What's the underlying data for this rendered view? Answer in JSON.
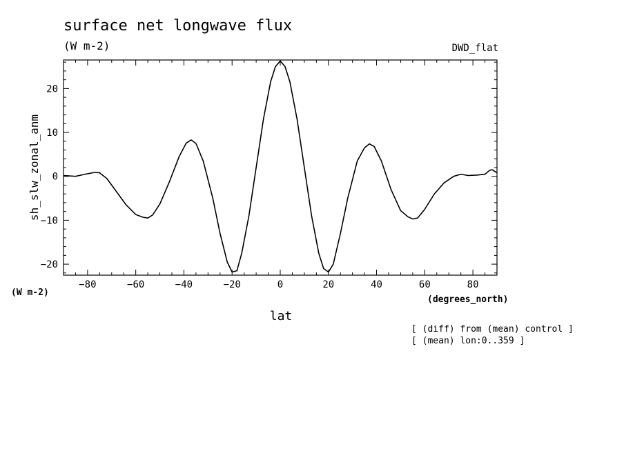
{
  "chart_data": {
    "type": "line",
    "title": "surface net longwave flux",
    "subtitle": "(W m-2)",
    "experiment": "DWD_flat",
    "ylabel": "sh_slw_zonal_anm",
    "yunits": "(W m-2)",
    "xlabel": "lat",
    "xunits": "(degrees_north)",
    "xlim": [
      -90,
      90
    ],
    "ylim": [
      -22.5,
      26.5
    ],
    "xticks": [
      -80,
      -60,
      -40,
      -20,
      0,
      20,
      40,
      60,
      80
    ],
    "yticks": [
      -20,
      -10,
      0,
      10,
      20
    ],
    "grid": false,
    "notes": [
      "[ (diff) from (mean) control ]",
      "[ (mean) lon:0..359 ]"
    ],
    "series": [
      {
        "x": [
          -90,
          -85,
          -81,
          -77,
          -75,
          -72,
          -68,
          -64,
          -60,
          -57,
          -55,
          -53,
          -50,
          -46,
          -42,
          -39,
          -37,
          -35,
          -32,
          -28,
          -25,
          -22,
          -20,
          -18,
          -16,
          -13,
          -10,
          -7,
          -4,
          -2,
          0,
          2,
          4,
          7,
          10,
          13,
          16,
          18,
          20,
          22,
          25,
          28,
          32,
          35,
          37,
          39,
          42,
          46,
          50,
          53,
          55,
          57,
          60,
          64,
          68,
          72,
          75,
          78,
          82,
          85,
          87,
          88,
          90
        ],
        "y": [
          0.2,
          0.0,
          0.5,
          0.9,
          0.8,
          -0.5,
          -3.5,
          -6.5,
          -8.7,
          -9.3,
          -9.5,
          -8.8,
          -6.3,
          -1.2,
          4.5,
          7.6,
          8.3,
          7.5,
          3.5,
          -5.0,
          -13.0,
          -19.5,
          -21.8,
          -21.5,
          -17.5,
          -9.0,
          2.0,
          13.0,
          21.5,
          25.0,
          26.3,
          25.0,
          21.5,
          13.0,
          2.0,
          -9.0,
          -17.5,
          -21.0,
          -21.8,
          -20.0,
          -13.0,
          -5.0,
          3.5,
          6.5,
          7.4,
          6.8,
          3.5,
          -3.0,
          -7.8,
          -9.2,
          -9.7,
          -9.5,
          -7.5,
          -4.0,
          -1.5,
          0.0,
          0.5,
          0.2,
          0.3,
          0.5,
          1.4,
          1.5,
          0.8
        ]
      }
    ]
  }
}
